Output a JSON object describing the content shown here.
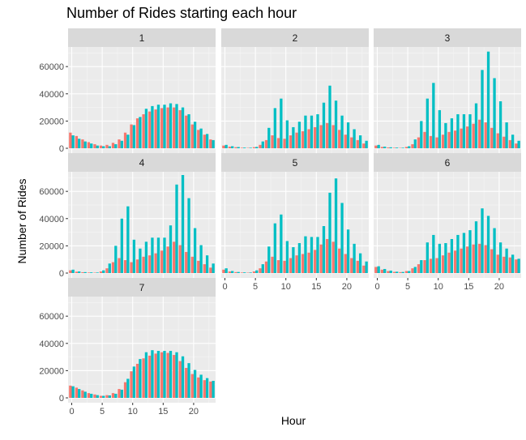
{
  "chart_data": {
    "type": "bar",
    "title": "Number of Rides starting each hour",
    "xlabel": "Hour",
    "ylabel": "Number of Rides",
    "x": [
      0,
      1,
      2,
      3,
      4,
      5,
      6,
      7,
      8,
      9,
      10,
      11,
      12,
      13,
      14,
      15,
      16,
      17,
      18,
      19,
      20,
      21,
      22,
      23
    ],
    "xticks": [
      0,
      5,
      10,
      15,
      20
    ],
    "yticks": [
      0,
      20000,
      40000,
      60000
    ],
    "ylim": [
      0,
      72000
    ],
    "colors": {
      "series1": "#F8766D",
      "series2": "#00BFC4"
    },
    "grid": true,
    "panels": [
      {
        "label": "1",
        "series": [
          {
            "values": [
              11500,
              9000,
              6500,
              4500,
              3000,
              2000,
              2500,
              4000,
              6500,
              11500,
              17500,
              22000,
              25000,
              27000,
              28500,
              29500,
              30000,
              30000,
              28000,
              24000,
              17500,
              13500,
              10000,
              6500
            ]
          },
          {
            "values": [
              9500,
              7000,
              5000,
              3500,
              2000,
              1500,
              1500,
              3000,
              5500,
              10000,
              17000,
              23000,
              29000,
              31000,
              32000,
              32000,
              33000,
              32500,
              30000,
              25000,
              19500,
              14500,
              10500,
              6000
            ]
          }
        ]
      },
      {
        "label": "2",
        "series": [
          {
            "values": [
              2000,
              1200,
              800,
              400,
              300,
              800,
              2500,
              6000,
              9500,
              7500,
              7000,
              9500,
              11500,
              12500,
              14000,
              15500,
              17000,
              18500,
              17000,
              13500,
              10000,
              8000,
              6000,
              3500
            ]
          },
          {
            "values": [
              2500,
              1500,
              900,
              500,
              400,
              1000,
              5000,
              15000,
              29500,
              36500,
              20500,
              15500,
              19500,
              24000,
              24000,
              25000,
              33500,
              46000,
              35000,
              24000,
              19000,
              14000,
              9500,
              5500
            ]
          }
        ]
      },
      {
        "label": "3",
        "series": [
          {
            "values": [
              2000,
              1000,
              600,
              400,
              300,
              1000,
              3000,
              8000,
              12000,
              9000,
              8000,
              10000,
              12000,
              13000,
              14500,
              16000,
              18000,
              21000,
              19000,
              15000,
              11000,
              8500,
              6000,
              3500
            ]
          },
          {
            "values": [
              2500,
              1200,
              700,
              500,
              400,
              1500,
              6500,
              20000,
              36500,
              48000,
              28000,
              18500,
              22000,
              25000,
              25000,
              25000,
              33000,
              57500,
              71000,
              51500,
              34500,
              19000,
              10000,
              5500
            ]
          }
        ]
      },
      {
        "label": "4",
        "series": [
          {
            "values": [
              2000,
              1000,
              600,
              400,
              300,
              1200,
              3500,
              8000,
              11000,
              9500,
              8000,
              10000,
              12000,
              13000,
              14500,
              16500,
              19500,
              23000,
              20500,
              15500,
              12000,
              9000,
              6500,
              4000
            ]
          },
          {
            "values": [
              2500,
              1200,
              700,
              500,
              400,
              2000,
              7000,
              20000,
              40000,
              49000,
              24500,
              18000,
              23000,
              26000,
              26000,
              26000,
              35000,
              65000,
              72000,
              55000,
              33000,
              20500,
              13000,
              7000
            ]
          }
        ]
      },
      {
        "label": "5",
        "series": [
          {
            "values": [
              2500,
              1200,
              700,
              400,
              300,
              1200,
              3500,
              8500,
              12000,
              9500,
              9000,
              11000,
              13000,
              14000,
              15000,
              17000,
              21000,
              25000,
              23000,
              18000,
              14000,
              11000,
              9000,
              5500
            ]
          },
          {
            "values": [
              3500,
              1500,
              800,
              500,
              400,
              2000,
              6500,
              19500,
              36500,
              43000,
              23500,
              19000,
              22000,
              27000,
              26500,
              26500,
              34500,
              59000,
              69500,
              51500,
              32000,
              21500,
              14500,
              8500
            ]
          }
        ]
      },
      {
        "label": "6",
        "series": [
          {
            "values": [
              4500,
              2500,
              1500,
              900,
              700,
              1500,
              3500,
              6500,
              9500,
              10500,
              11000,
              13000,
              15000,
              16500,
              18000,
              19500,
              21000,
              21500,
              20500,
              17500,
              13500,
              12000,
              11500,
              10000
            ]
          },
          {
            "values": [
              5000,
              3000,
              1800,
              1000,
              800,
              1500,
              4500,
              9500,
              22500,
              28000,
              21500,
              22000,
              25000,
              28000,
              29500,
              31500,
              38000,
              47500,
              42000,
              33000,
              22500,
              18000,
              13500,
              10500
            ]
          }
        ]
      },
      {
        "label": "7",
        "series": [
          {
            "values": [
              9000,
              7500,
              5500,
              3500,
              2500,
              1500,
              2000,
              3500,
              6500,
              11500,
              19500,
              25000,
              29000,
              31000,
              32500,
              33500,
              33000,
              31500,
              27000,
              22000,
              17500,
              15000,
              13000,
              12000
            ]
          },
          {
            "values": [
              8500,
              6500,
              4500,
              3000,
              2000,
              1500,
              1800,
              3000,
              6000,
              14000,
              23000,
              28500,
              33500,
              35000,
              34500,
              34500,
              34500,
              33500,
              30500,
              25500,
              20500,
              17000,
              14500,
              12500
            ]
          }
        ]
      }
    ]
  }
}
